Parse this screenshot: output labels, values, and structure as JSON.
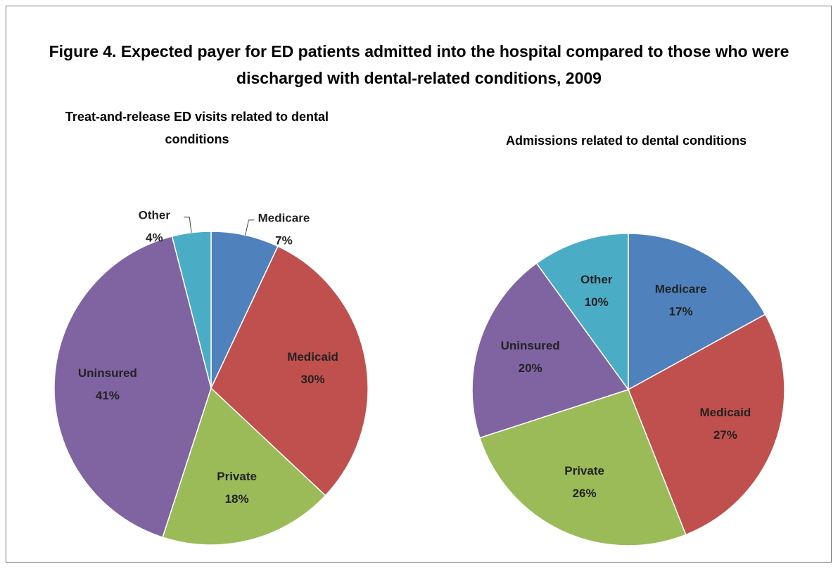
{
  "title": "Figure 4. Expected payer for ED patients admitted into the hospital compared to those who were discharged with dental-related conditions, 2009",
  "chart_data": [
    {
      "type": "pie",
      "title": "Treat-and-release ED visits related to dental conditions",
      "categories": [
        "Medicare",
        "Medicaid",
        "Private",
        "Uninsured",
        "Other"
      ],
      "values": [
        7,
        30,
        18,
        41,
        4
      ],
      "value_labels": [
        "7%",
        "30%",
        "18%",
        "41%",
        "4%"
      ],
      "colors": [
        "#4f81bd",
        "#c0504d",
        "#9bbb59",
        "#8064a2",
        "#4bacc6"
      ]
    },
    {
      "type": "pie",
      "title": "Admissions related to dental conditions",
      "categories": [
        "Medicare",
        "Medicaid",
        "Private",
        "Uninsured",
        "Other"
      ],
      "values": [
        17,
        27,
        26,
        20,
        10
      ],
      "value_labels": [
        "17%",
        "27%",
        "26%",
        "20%",
        "10%"
      ],
      "colors": [
        "#4f81bd",
        "#c0504d",
        "#9bbb59",
        "#8064a2",
        "#4bacc6"
      ]
    }
  ]
}
